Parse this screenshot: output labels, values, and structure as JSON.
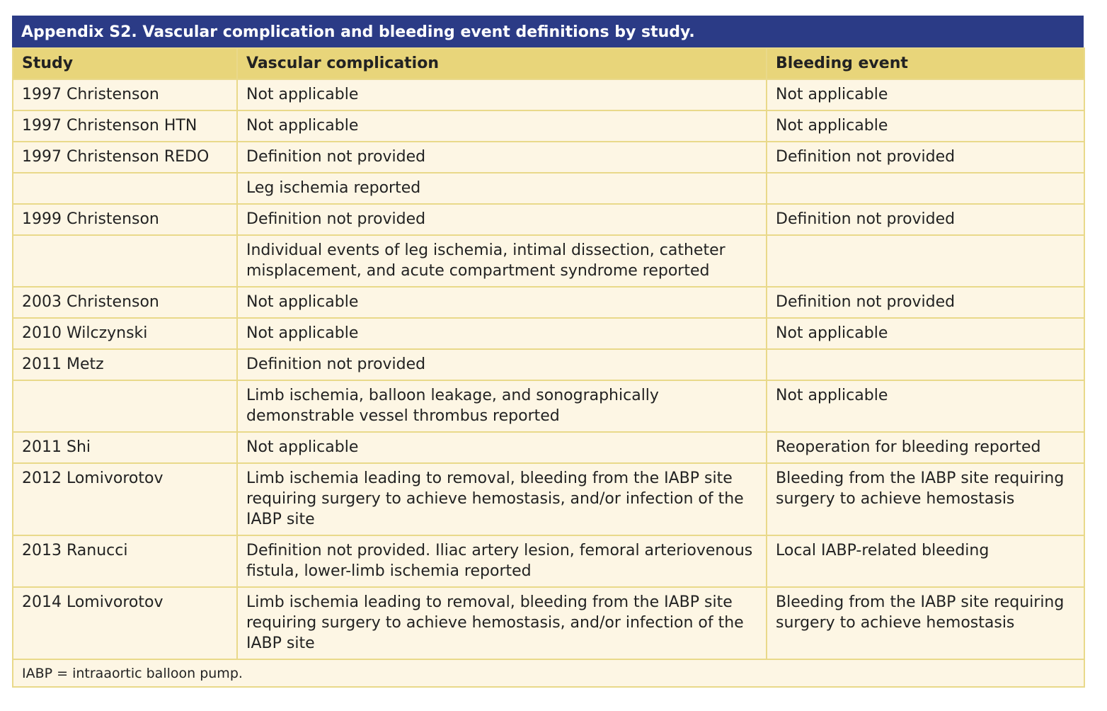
{
  "table": {
    "title": "Appendix S2. Vascular complication and bleeding event definitions by study.",
    "header": [
      "Study",
      "Vascular complication",
      "Bleeding event"
    ],
    "rows": [
      [
        "1997 Christenson",
        "Not applicable",
        "Not applicable"
      ],
      [
        "1997 Christenson HTN",
        "Not applicable",
        "Not applicable"
      ],
      [
        "1997 Christenson REDO",
        "Definition not provided",
        "Definition not provided"
      ],
      [
        null,
        "Leg ischemia reported",
        null
      ],
      [
        "1999 Christenson",
        "Definition not provided",
        "Definition not provided"
      ],
      [
        null,
        "Individual events of leg ischemia, intimal dissection, catheter misplacement, and acute compartment syndrome reported",
        null
      ],
      [
        "2003 Christenson",
        "Not applicable",
        "Definition not provided"
      ],
      [
        "2010 Wilczynski",
        "Not applicable",
        "Not applicable"
      ],
      [
        "2011 Metz",
        "Definition not provided",
        null
      ],
      [
        null,
        "Limb ischemia, balloon leakage, and sonographically demonstrable vessel thrombus reported",
        "Not applicable"
      ],
      [
        "2011 Shi",
        "Not applicable",
        "Reoperation for bleeding reported"
      ],
      [
        "2012 Lomivorotov",
        "Limb ischemia leading to removal, bleeding from the IABP site requiring surgery to achieve hemostasis, and/or infection of the IABP site",
        "Bleeding from the IABP site requiring surgery to achieve hemostasis"
      ],
      [
        "2013 Ranucci",
        "Definition not provided. Iliac artery lesion, femoral arteriovenous fistula, lower-limb ischemia reported",
        "Local IABP-related bleeding"
      ],
      [
        "2014 Lomivorotov",
        "Limb ischemia leading to removal, bleeding from the IABP site requiring surgery to achieve hemostasis, and/or infection of the IABP site",
        "Bleeding from the IABP site requiring surgery to achieve hemostasis"
      ]
    ],
    "footnote": "IABP = intraaortic balloon pump."
  }
}
